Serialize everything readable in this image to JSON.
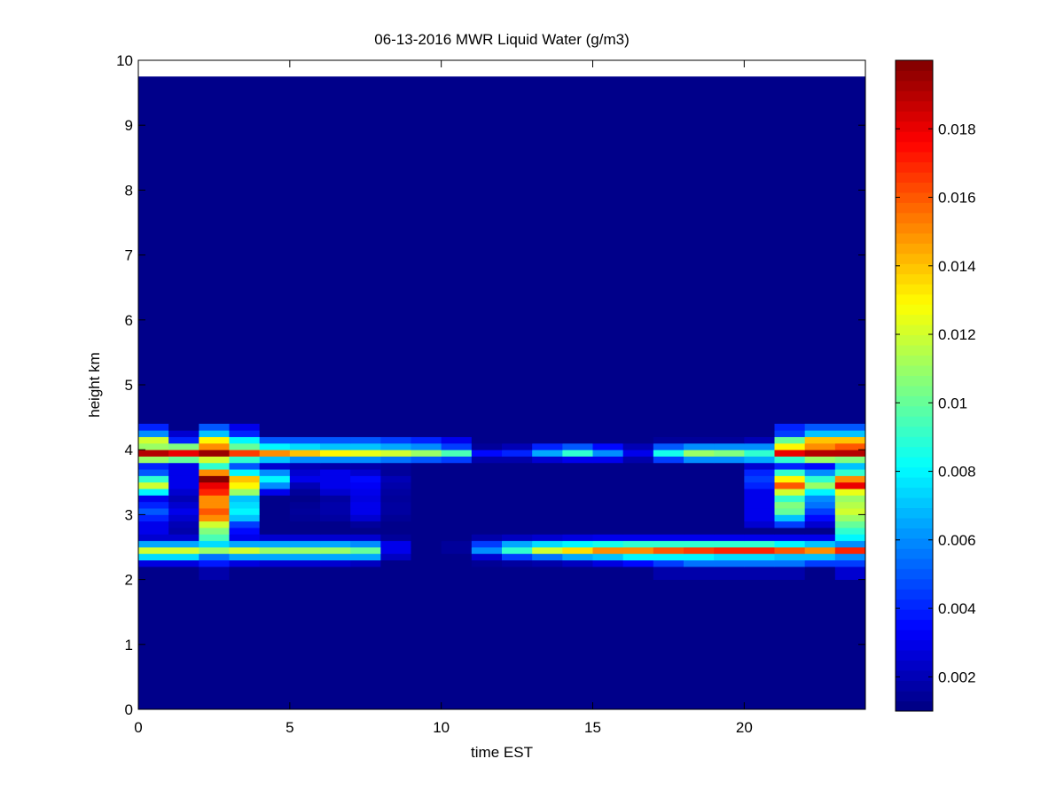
{
  "chart_data": {
    "type": "heatmap",
    "title": "06-13-2016 MWR Liquid Water (g/m3)",
    "xlabel": "time EST",
    "ylabel": "height km",
    "xlim": [
      0,
      24
    ],
    "ylim": [
      0,
      10
    ],
    "x_ticks": [
      0,
      5,
      10,
      15,
      20
    ],
    "y_ticks": [
      0,
      1,
      2,
      3,
      4,
      5,
      6,
      7,
      8,
      9,
      10
    ],
    "colorbar": {
      "colormap": "jet",
      "range": [
        0.001,
        0.02
      ],
      "ticks": [
        0.002,
        0.004,
        0.006,
        0.008,
        0.01,
        0.012,
        0.014,
        0.016,
        0.018
      ],
      "tick_labels": [
        "0.002",
        "0.004",
        "0.006",
        "0.008",
        "0.01",
        "0.012",
        "0.014",
        "0.016",
        "0.018"
      ]
    },
    "grid": false,
    "time_start": 0,
    "time_step": 1,
    "time_bins": 24,
    "data_top_km": 9.75,
    "background_value": 0.0012,
    "height_bins_km": [
      2.05,
      2.15,
      2.25,
      2.35,
      2.45,
      2.55,
      2.65,
      2.75,
      2.85,
      2.95,
      3.05,
      3.15,
      3.25,
      3.35,
      3.45,
      3.55,
      3.65,
      3.75,
      3.85,
      3.95,
      4.05,
      4.15,
      4.25,
      4.35
    ],
    "values": [
      [
        0.0012,
        0.0012,
        0.0018,
        0.0012,
        0.0012,
        0.0012,
        0.0012,
        0.0012,
        0.0012,
        0.0012,
        0.0012,
        0.0012,
        0.0012,
        0.0012,
        0.0012,
        0.0012,
        0.0012,
        0.0018,
        0.0018,
        0.0018,
        0.0018,
        0.0018,
        0.0012,
        0.0025
      ],
      [
        0.0012,
        0.0012,
        0.0018,
        0.0012,
        0.0012,
        0.0012,
        0.0012,
        0.0012,
        0.0012,
        0.0012,
        0.0012,
        0.0012,
        0.0012,
        0.0012,
        0.0012,
        0.0012,
        0.0012,
        0.0018,
        0.0018,
        0.0018,
        0.0018,
        0.0018,
        0.0012,
        0.0025
      ],
      [
        0.0028,
        0.0028,
        0.0038,
        0.0028,
        0.0025,
        0.0025,
        0.0025,
        0.0022,
        0.0012,
        0.0012,
        0.0012,
        0.0014,
        0.0016,
        0.0018,
        0.0022,
        0.0028,
        0.0035,
        0.0045,
        0.0055,
        0.0055,
        0.0055,
        0.0055,
        0.0045,
        0.0045
      ],
      [
        0.0075,
        0.0075,
        0.0055,
        0.0065,
        0.0065,
        0.0065,
        0.0065,
        0.0065,
        0.0022,
        0.0012,
        0.0012,
        0.0025,
        0.0045,
        0.0055,
        0.0065,
        0.007,
        0.008,
        0.008,
        0.008,
        0.0075,
        0.0075,
        0.007,
        0.007,
        0.006
      ],
      [
        0.012,
        0.012,
        0.011,
        0.012,
        0.011,
        0.011,
        0.011,
        0.01,
        0.003,
        0.0012,
        0.0015,
        0.006,
        0.009,
        0.012,
        0.0135,
        0.015,
        0.015,
        0.016,
        0.0165,
        0.017,
        0.017,
        0.016,
        0.015,
        0.017
      ],
      [
        0.0065,
        0.0065,
        0.0075,
        0.0065,
        0.0065,
        0.0065,
        0.0065,
        0.006,
        0.003,
        0.0012,
        0.0015,
        0.0045,
        0.0065,
        0.0075,
        0.008,
        0.0085,
        0.009,
        0.009,
        0.009,
        0.009,
        0.009,
        0.008,
        0.007,
        0.006
      ],
      [
        0.0025,
        0.0025,
        0.0095,
        0.003,
        0.0025,
        0.0025,
        0.0025,
        0.0025,
        0.0015,
        0.0012,
        0.0012,
        0.0018,
        0.0022,
        0.0025,
        0.0028,
        0.003,
        0.003,
        0.003,
        0.003,
        0.003,
        0.003,
        0.003,
        0.003,
        0.008
      ],
      [
        0.003,
        0.0018,
        0.0105,
        0.0035,
        0.0012,
        0.0012,
        0.0012,
        0.0012,
        0.0012,
        0.0012,
        0.0012,
        0.0012,
        0.0012,
        0.0012,
        0.0012,
        0.0012,
        0.0012,
        0.0012,
        0.0012,
        0.0012,
        0.0012,
        0.0012,
        0.0012,
        0.009
      ],
      [
        0.003,
        0.002,
        0.012,
        0.0045,
        0.0012,
        0.0012,
        0.0012,
        0.0015,
        0.0012,
        0.0012,
        0.0012,
        0.0012,
        0.0012,
        0.0012,
        0.0012,
        0.0012,
        0.0012,
        0.0012,
        0.0012,
        0.0012,
        0.0025,
        0.0045,
        0.0025,
        0.01
      ],
      [
        0.004,
        0.0025,
        0.015,
        0.007,
        0.0012,
        0.0014,
        0.0016,
        0.0025,
        0.0014,
        0.0012,
        0.0012,
        0.0012,
        0.0012,
        0.0012,
        0.0012,
        0.0012,
        0.0012,
        0.0012,
        0.0012,
        0.0012,
        0.003,
        0.007,
        0.0035,
        0.011
      ],
      [
        0.005,
        0.003,
        0.016,
        0.008,
        0.0012,
        0.0015,
        0.0018,
        0.003,
        0.0016,
        0.0012,
        0.0012,
        0.0012,
        0.0012,
        0.0012,
        0.0012,
        0.0012,
        0.0012,
        0.0012,
        0.0012,
        0.0012,
        0.003,
        0.01,
        0.0045,
        0.012
      ],
      [
        0.004,
        0.0025,
        0.015,
        0.0075,
        0.0012,
        0.0014,
        0.0018,
        0.003,
        0.0016,
        0.0012,
        0.0012,
        0.0012,
        0.0012,
        0.0012,
        0.0012,
        0.0012,
        0.0012,
        0.0012,
        0.0012,
        0.0012,
        0.003,
        0.0105,
        0.0055,
        0.0115
      ],
      [
        0.003,
        0.002,
        0.015,
        0.007,
        0.0012,
        0.0012,
        0.0016,
        0.0028,
        0.0015,
        0.0012,
        0.0012,
        0.0012,
        0.0012,
        0.0012,
        0.0012,
        0.0012,
        0.0012,
        0.0012,
        0.0012,
        0.0012,
        0.003,
        0.009,
        0.006,
        0.011
      ],
      [
        0.008,
        0.0025,
        0.017,
        0.011,
        0.003,
        0.0015,
        0.0025,
        0.003,
        0.0016,
        0.0012,
        0.0012,
        0.0012,
        0.0012,
        0.0012,
        0.0012,
        0.0012,
        0.0012,
        0.0012,
        0.0012,
        0.0012,
        0.003,
        0.012,
        0.008,
        0.0125
      ],
      [
        0.012,
        0.003,
        0.018,
        0.013,
        0.006,
        0.002,
        0.003,
        0.0032,
        0.0018,
        0.0012,
        0.0012,
        0.0012,
        0.0012,
        0.0012,
        0.0012,
        0.0012,
        0.0012,
        0.0012,
        0.0012,
        0.0012,
        0.004,
        0.016,
        0.011,
        0.018
      ],
      [
        0.009,
        0.003,
        0.02,
        0.014,
        0.008,
        0.003,
        0.003,
        0.0035,
        0.002,
        0.0012,
        0.0012,
        0.0012,
        0.0012,
        0.0012,
        0.0012,
        0.0012,
        0.0012,
        0.0012,
        0.0012,
        0.0012,
        0.0045,
        0.013,
        0.009,
        0.015
      ],
      [
        0.005,
        0.003,
        0.015,
        0.008,
        0.006,
        0.0025,
        0.003,
        0.0025,
        0.0015,
        0.0012,
        0.0012,
        0.0012,
        0.0012,
        0.0012,
        0.0012,
        0.0012,
        0.0012,
        0.0012,
        0.0012,
        0.0012,
        0.004,
        0.009,
        0.006,
        0.009
      ],
      [
        0.004,
        0.003,
        0.009,
        0.005,
        0.0025,
        0.002,
        0.0018,
        0.0018,
        0.0015,
        0.0012,
        0.0012,
        0.0012,
        0.0012,
        0.0012,
        0.0012,
        0.0012,
        0.0012,
        0.0012,
        0.0012,
        0.0012,
        0.0025,
        0.004,
        0.0035,
        0.007
      ],
      [
        0.011,
        0.01,
        0.012,
        0.009,
        0.007,
        0.006,
        0.006,
        0.006,
        0.0055,
        0.005,
        0.0045,
        0.0018,
        0.0018,
        0.0025,
        0.003,
        0.003,
        0.0018,
        0.0045,
        0.006,
        0.006,
        0.0065,
        0.009,
        0.011,
        0.0105
      ],
      [
        0.019,
        0.018,
        0.0195,
        0.0165,
        0.015,
        0.014,
        0.013,
        0.0125,
        0.012,
        0.011,
        0.0095,
        0.0035,
        0.004,
        0.0065,
        0.009,
        0.006,
        0.003,
        0.0085,
        0.011,
        0.0105,
        0.009,
        0.018,
        0.019,
        0.019
      ],
      [
        0.011,
        0.0105,
        0.015,
        0.01,
        0.008,
        0.0075,
        0.007,
        0.007,
        0.0065,
        0.006,
        0.0045,
        0.0015,
        0.002,
        0.004,
        0.005,
        0.0035,
        0.002,
        0.005,
        0.006,
        0.006,
        0.006,
        0.013,
        0.015,
        0.016
      ],
      [
        0.012,
        0.004,
        0.013,
        0.008,
        0.005,
        0.005,
        0.005,
        0.005,
        0.0045,
        0.004,
        0.003,
        0.0012,
        0.0012,
        0.0012,
        0.0012,
        0.0012,
        0.0012,
        0.0015,
        0.0015,
        0.0015,
        0.002,
        0.01,
        0.014,
        0.014
      ],
      [
        0.006,
        0.0025,
        0.007,
        0.004,
        0.0012,
        0.0012,
        0.0012,
        0.0012,
        0.0012,
        0.0012,
        0.0012,
        0.0012,
        0.0012,
        0.0012,
        0.0012,
        0.0012,
        0.0012,
        0.0012,
        0.0012,
        0.0012,
        0.0012,
        0.0045,
        0.007,
        0.007
      ],
      [
        0.004,
        0.0012,
        0.005,
        0.003,
        0.0012,
        0.0012,
        0.0012,
        0.0012,
        0.0012,
        0.0012,
        0.0012,
        0.0012,
        0.0012,
        0.0012,
        0.0012,
        0.0012,
        0.0012,
        0.0012,
        0.0012,
        0.0012,
        0.0012,
        0.004,
        0.005,
        0.005
      ]
    ]
  }
}
